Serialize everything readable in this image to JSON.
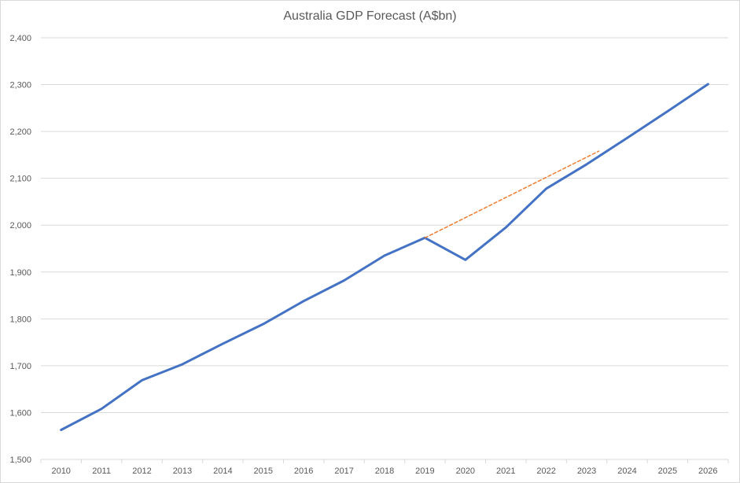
{
  "chart_data": {
    "type": "line",
    "title": "Australia GDP Forecast (A$bn)",
    "xlabel": "",
    "ylabel": "",
    "ylim": [
      1500,
      2400
    ],
    "yticks": [
      1500,
      1600,
      1700,
      1800,
      1900,
      2000,
      2100,
      2200,
      2300,
      2400
    ],
    "ytick_labels": [
      "1,500",
      "1,600",
      "1,700",
      "1,800",
      "1,900",
      "2,000",
      "2,100",
      "2,200",
      "2,300",
      "2,400"
    ],
    "categories": [
      "2010",
      "2011",
      "2012",
      "2013",
      "2014",
      "2015",
      "2016",
      "2017",
      "2018",
      "2019",
      "2020",
      "2021",
      "2022",
      "2023",
      "2024",
      "2025",
      "2026"
    ],
    "grid": true,
    "legend": "none",
    "series": [
      {
        "color": "#4472c4",
        "style": "solid",
        "values": [
          1563,
          1608,
          1669,
          1703,
          1747,
          1789,
          1838,
          1882,
          1935,
          1973,
          1926,
          1995,
          2078,
          2130,
          2186,
          2243,
          2301
        ]
      },
      {
        "color": "#ed7d31",
        "style": "dashed",
        "x": [
          9,
          13.3
        ],
        "values": [
          1973,
          2158
        ]
      }
    ]
  }
}
